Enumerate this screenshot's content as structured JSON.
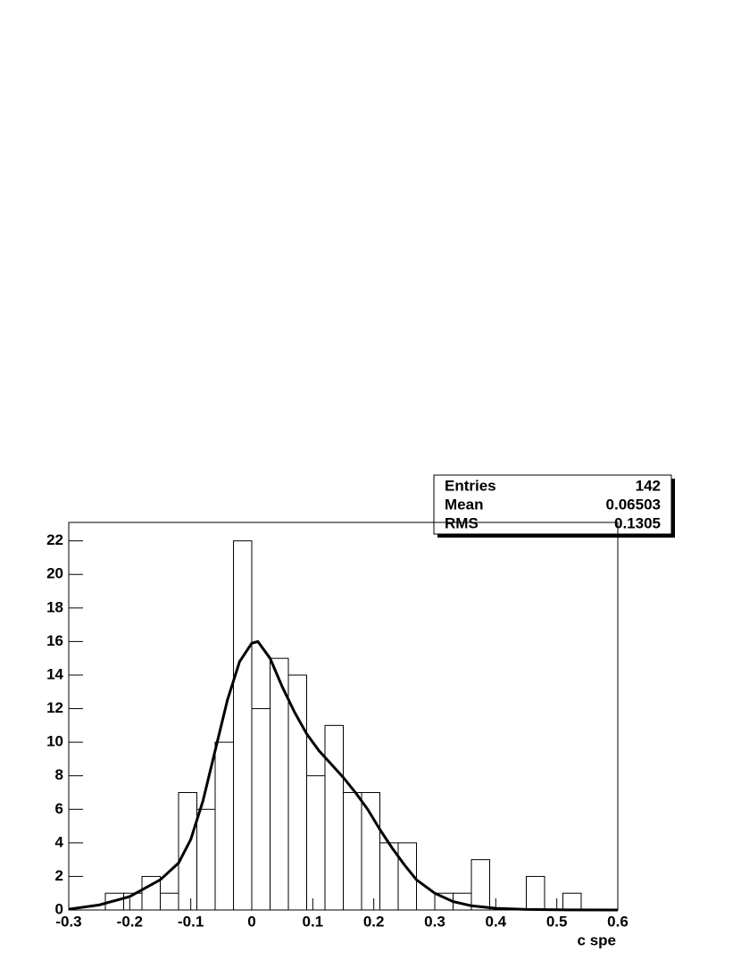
{
  "chart_data": {
    "type": "histogram",
    "bins": [
      -0.3,
      -0.27,
      -0.24,
      -0.21,
      -0.18,
      -0.15,
      -0.12,
      -0.09,
      -0.06,
      -0.03,
      0,
      0.03,
      0.06,
      0.09,
      0.12,
      0.15,
      0.18,
      0.21,
      0.24,
      0.27,
      0.3,
      0.33,
      0.36,
      0.39,
      0.42,
      0.45,
      0.48,
      0.51,
      0.54,
      0.57,
      0.6
    ],
    "values": [
      0,
      0,
      1,
      1,
      2,
      1,
      7,
      6,
      10,
      22,
      12,
      15,
      14,
      8,
      11,
      7,
      7,
      4,
      4,
      0,
      1,
      1,
      3,
      0,
      0,
      2,
      0,
      1,
      0,
      0
    ],
    "color": "#000000",
    "fit": {
      "color": "#000000",
      "x": [
        -0.3,
        -0.25,
        -0.2,
        -0.15,
        -0.12,
        -0.1,
        -0.08,
        -0.06,
        -0.04,
        -0.02,
        0,
        0.01,
        0.03,
        0.05,
        0.07,
        0.09,
        0.11,
        0.13,
        0.15,
        0.17,
        0.19,
        0.21,
        0.23,
        0.25,
        0.27,
        0.3,
        0.33,
        0.36,
        0.4,
        0.45,
        0.5,
        0.6
      ],
      "values": [
        0.05,
        0.3,
        0.8,
        1.8,
        2.8,
        4.2,
        6.5,
        9.5,
        12.5,
        14.8,
        15.9,
        16,
        15,
        13.3,
        11.8,
        10.5,
        9.5,
        8.7,
        7.9,
        7,
        6,
        4.8,
        3.7,
        2.7,
        1.8,
        1,
        0.5,
        0.25,
        0.1,
        0.03,
        0.01,
        0
      ]
    },
    "x_label": "c spe",
    "xlim": [
      -0.3,
      0.6
    ],
    "xticks": [
      -0.3,
      -0.2,
      -0.1,
      0,
      0.1,
      0.2,
      0.3,
      0.4,
      0.5,
      0.6
    ],
    "ylim": [
      0,
      23.1
    ],
    "yticks": [
      0,
      2,
      4,
      6,
      8,
      10,
      12,
      14,
      16,
      18,
      20,
      22
    ],
    "stats": {
      "Entries": 142,
      "Mean": 0.06503,
      "RMS": 0.1305
    }
  }
}
